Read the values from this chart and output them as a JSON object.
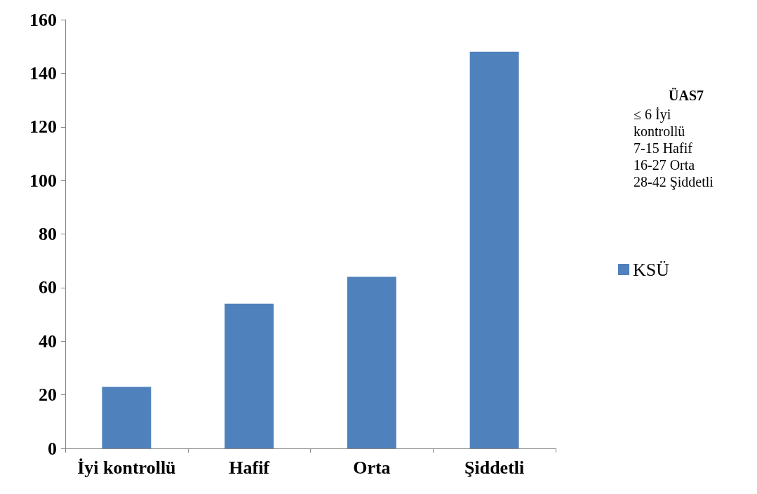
{
  "chart_data": {
    "type": "bar",
    "categories": [
      "İyi kontrollü",
      "Hafif",
      "Orta",
      "Şiddetli"
    ],
    "series": [
      {
        "name": "KSÜ",
        "color": "#4f81bd",
        "values": [
          23,
          54,
          64,
          148
        ]
      }
    ],
    "ylim": [
      0,
      160
    ],
    "yticks": [
      0,
      20,
      40,
      60,
      80,
      100,
      120,
      140,
      160
    ],
    "grid": false,
    "legend": "right",
    "legend_title": "ÜAS7",
    "annotations": [
      "≤ 6 İyi kontrollü",
      "7-15 Hafif",
      "16-27 Orta",
      "28-42 Şiddetli"
    ]
  }
}
